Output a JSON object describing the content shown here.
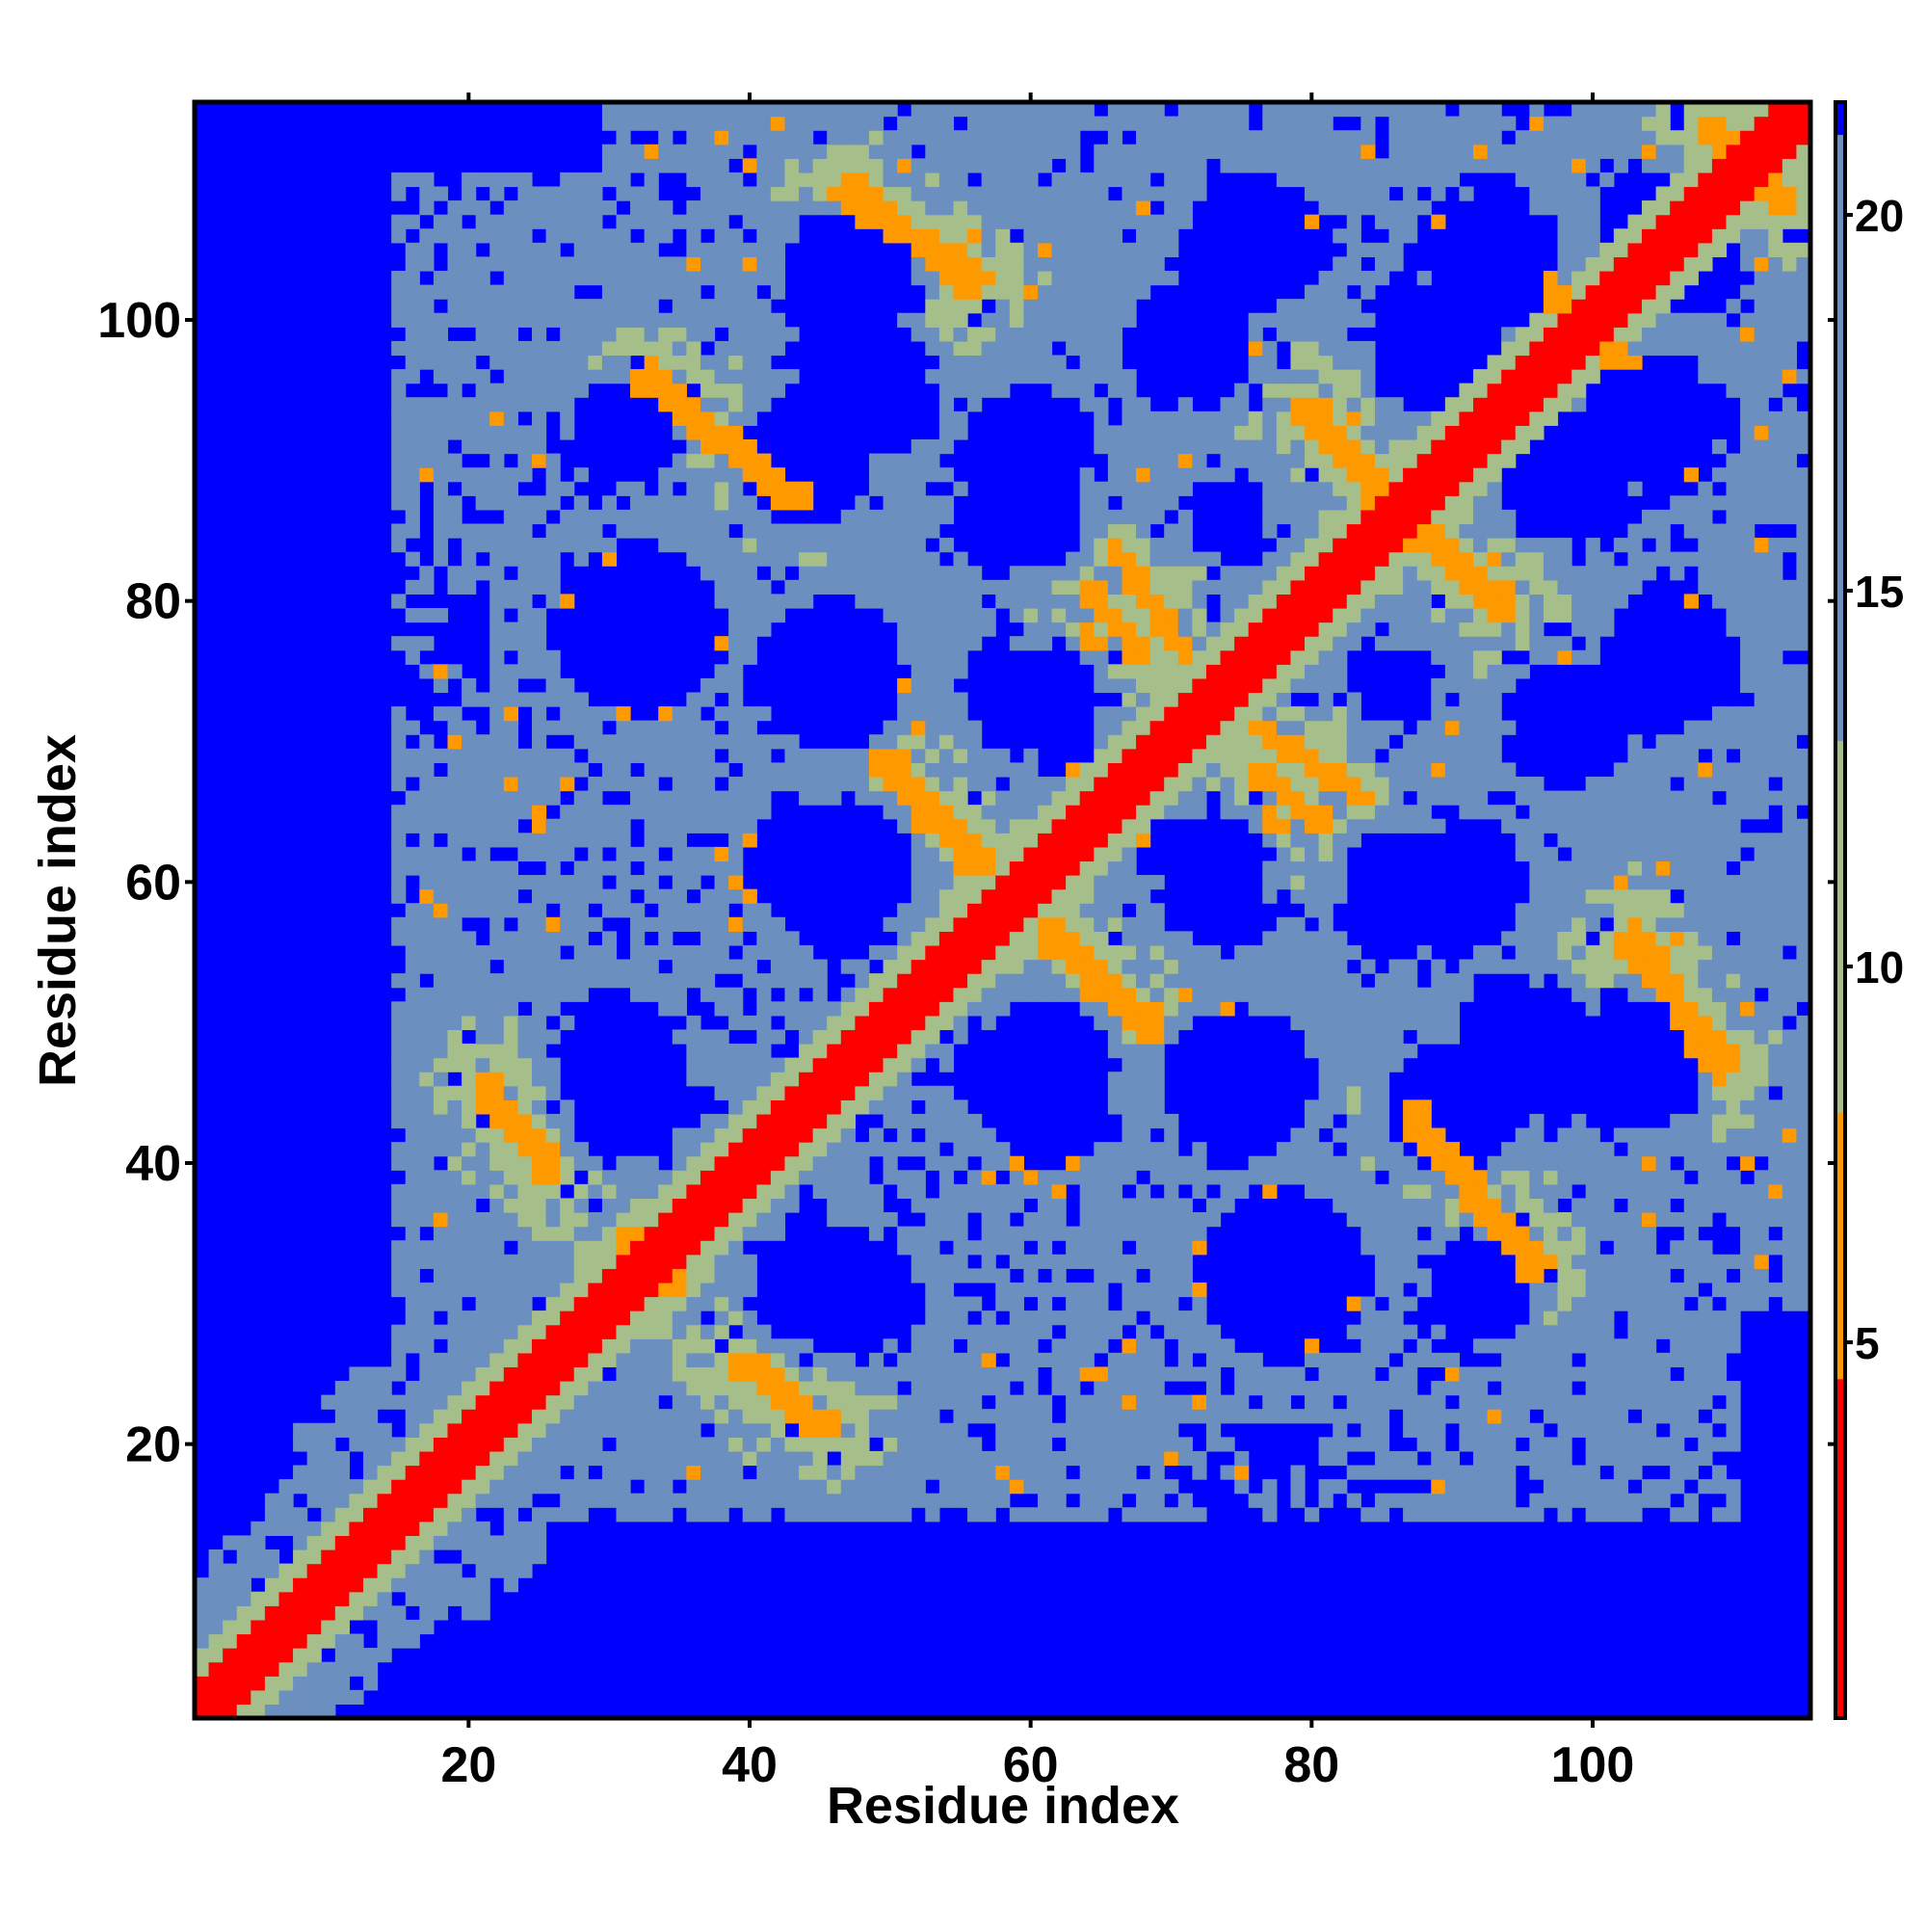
{
  "chart_data": {
    "type": "heatmap",
    "title": "",
    "xlabel": "Residue index",
    "ylabel": "Residue index",
    "xlim": [
      1,
      115
    ],
    "ylim": [
      1,
      115
    ],
    "n_residues": 115,
    "x_ticks": [
      20,
      40,
      60,
      80,
      100
    ],
    "y_ticks": [
      20,
      40,
      60,
      80,
      100
    ],
    "colorbar": {
      "range": [
        0,
        21.5
      ],
      "ticks": [
        5,
        10,
        15,
        20
      ],
      "colors": {
        "contact": "#ff0000",
        "close": "#ff9900",
        "mid": "#a6bf8a",
        "far": "#6b8fbf",
        "none": "#0000ff"
      }
    },
    "diagonal_band": {
      "half_width": 2,
      "value": 1
    },
    "contact_segments": [
      {
        "start": [
          21,
          45
        ],
        "end": [
          26,
          39
        ],
        "value": 6
      },
      {
        "start": [
          31,
          35
        ],
        "end": [
          34,
          31
        ],
        "value": 6
      },
      {
        "start": [
          40,
          26
        ],
        "end": [
          46,
          21
        ],
        "value": 6
      },
      {
        "start": [
          49,
          69
        ],
        "end": [
          56,
          61
        ],
        "value": 6
      },
      {
        "start": [
          61,
          57
        ],
        "end": [
          69,
          50
        ],
        "value": 6
      },
      {
        "start": [
          32,
          96
        ],
        "end": [
          43,
          87
        ],
        "value": 6
      },
      {
        "start": [
          47,
          110
        ],
        "end": [
          56,
          102
        ],
        "value": 6
      },
      {
        "start": [
          80,
          94
        ],
        "end": [
          86,
          87
        ],
        "value": 6
      },
      {
        "start": [
          87,
          85
        ],
        "end": [
          94,
          79
        ],
        "value": 6
      },
      {
        "start": [
          87,
          44
        ],
        "end": [
          96,
          33
        ],
        "value": 6
      },
      {
        "start": [
          103,
          57
        ],
        "end": [
          109,
          46
        ],
        "value": 6
      },
      {
        "start": [
          97,
          103
        ],
        "end": [
          101,
          97
        ],
        "value": 6
      },
      {
        "start": [
          108,
          114
        ],
        "end": [
          114,
          108
        ],
        "value": 6
      },
      {
        "start": [
          66,
          84
        ],
        "end": [
          71,
          76
        ],
        "value": 6
      },
      {
        "start": [
          76,
          68
        ],
        "end": [
          81,
          64
        ],
        "value": 6
      }
    ],
    "void_regions": [
      {
        "center": [
          44,
          90
        ],
        "radius": 5
      },
      {
        "center": [
          47,
          103
        ],
        "radius": 5
      },
      {
        "center": [
          60,
          90
        ],
        "radius": 4
      },
      {
        "center": [
          76,
          105
        ],
        "radius": 4
      },
      {
        "center": [
          93,
          104
        ],
        "radius": 5
      },
      {
        "center": [
          107,
          104
        ],
        "radius": 4
      },
      {
        "center": [
          98,
          89
        ],
        "radius": 5
      },
      {
        "center": [
          46,
          74
        ],
        "radius": 5
      },
      {
        "center": [
          60,
          73
        ],
        "radius": 4
      },
      {
        "center": [
          86,
          74
        ],
        "radius": 3
      },
      {
        "center": [
          98,
          72
        ],
        "radius": 4
      },
      {
        "center": [
          47,
          61
        ],
        "radius": 5
      },
      {
        "center": [
          73,
          61
        ],
        "radius": 4
      },
      {
        "center": [
          86,
          60
        ],
        "radius": 4
      },
      {
        "center": [
          30,
          47
        ],
        "radius": 4
      },
      {
        "center": [
          62,
          45
        ],
        "radius": 4
      },
      {
        "center": [
          96,
          48
        ],
        "radius": 5
      },
      {
        "center": [
          44,
          31
        ],
        "radius": 4
      },
      {
        "center": [
          92,
          31
        ],
        "radius": 4
      },
      {
        "center": [
          32,
          78
        ],
        "radius": 5
      }
    ]
  }
}
